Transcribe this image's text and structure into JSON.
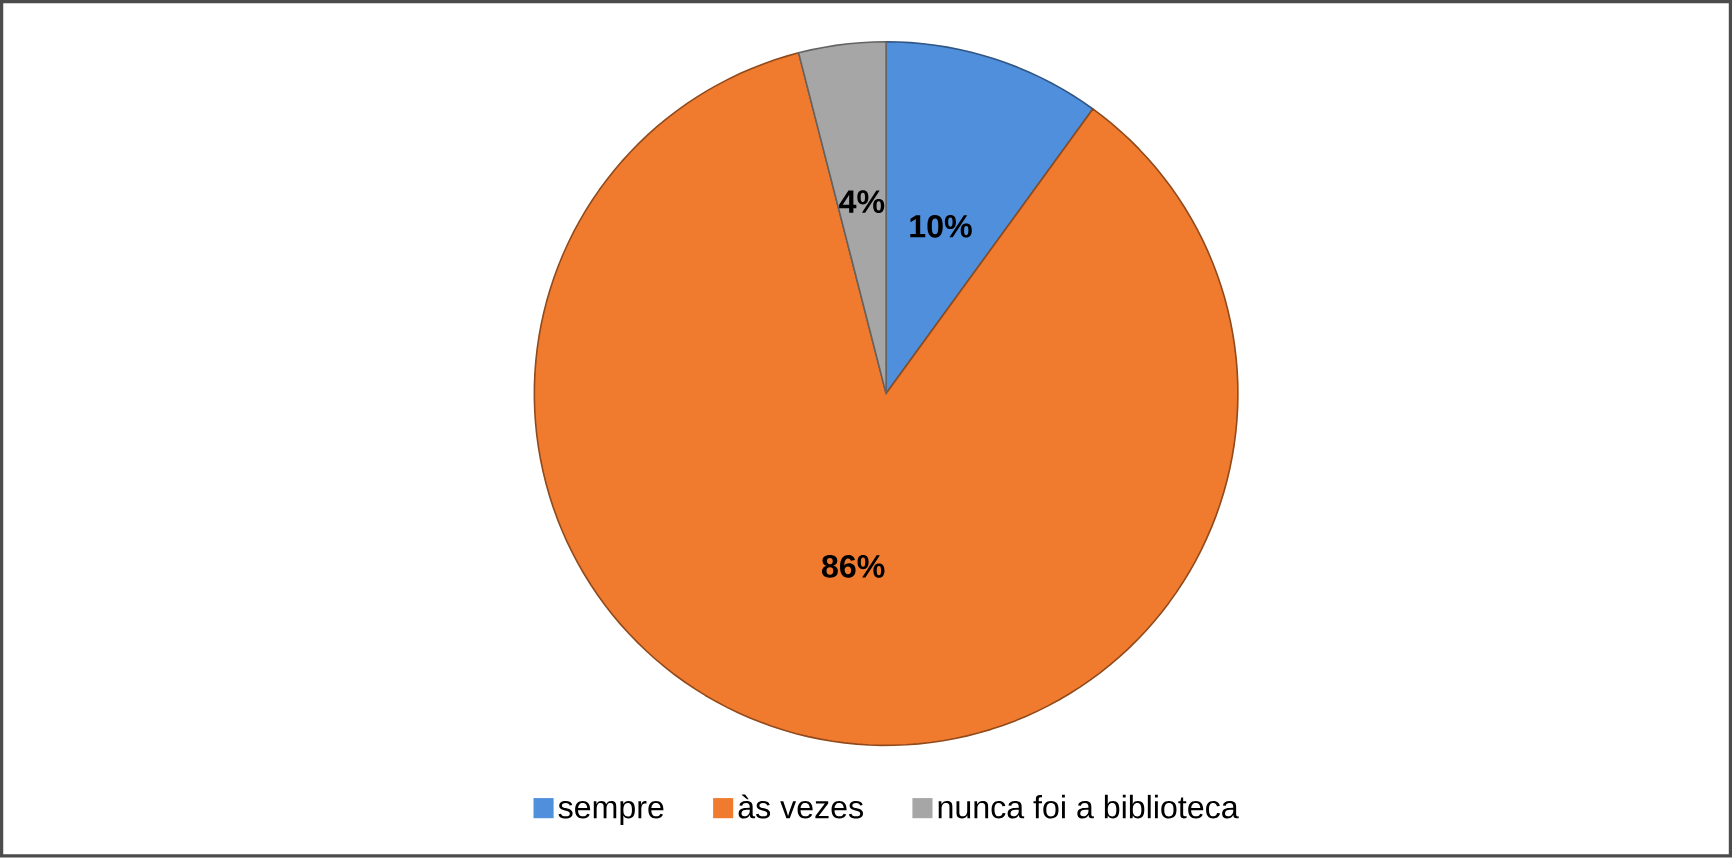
{
  "chart_data": {
    "type": "pie",
    "categories": [
      "sempre",
      "às vezes",
      "nunca foi a biblioteca"
    ],
    "values": [
      10,
      86,
      4
    ],
    "colors": [
      "#4f8fdc",
      "#f07b2e",
      "#a6a6a6"
    ],
    "value_labels": [
      "10%",
      "86%",
      "4%"
    ],
    "legend": "bottom"
  }
}
